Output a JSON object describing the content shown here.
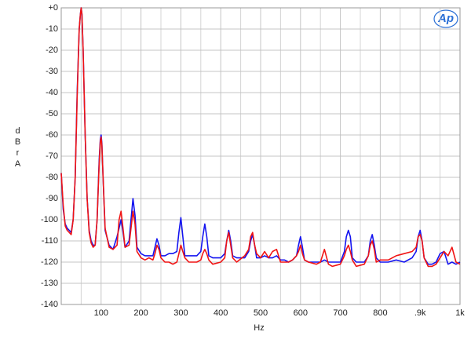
{
  "chart_data": {
    "type": "line",
    "logo": "Ap",
    "xlabel": "Hz",
    "ylabel": "dBr A",
    "x": [
      0,
      5,
      10,
      15,
      20,
      25,
      30,
      35,
      40,
      45,
      48,
      50,
      52,
      55,
      60,
      65,
      70,
      75,
      80,
      85,
      90,
      95,
      98,
      100,
      102,
      105,
      110,
      120,
      130,
      140,
      145,
      150,
      155,
      160,
      170,
      175,
      180,
      185,
      190,
      200,
      210,
      220,
      230,
      235,
      240,
      245,
      250,
      260,
      270,
      280,
      290,
      295,
      300,
      305,
      310,
      320,
      330,
      340,
      350,
      355,
      360,
      365,
      370,
      380,
      400,
      410,
      415,
      420,
      425,
      430,
      440,
      460,
      470,
      475,
      480,
      485,
      490,
      500,
      510,
      520,
      530,
      540,
      550,
      560,
      570,
      580,
      590,
      595,
      600,
      605,
      610,
      620,
      640,
      650,
      660,
      670,
      680,
      700,
      710,
      715,
      720,
      725,
      730,
      740,
      760,
      770,
      775,
      780,
      785,
      790,
      800,
      820,
      840,
      860,
      880,
      890,
      895,
      900,
      905,
      910,
      920,
      930,
      940,
      950,
      960,
      970,
      980,
      990,
      1000
    ],
    "series": [
      {
        "color": "#1414f0",
        "values": [
          -78,
          -95,
          -102,
          -104,
          -105,
          -106,
          -100,
          -80,
          -40,
          -10,
          -3,
          0,
          -3,
          -20,
          -60,
          -90,
          -105,
          -110,
          -112,
          -112,
          -100,
          -72,
          -62,
          -60,
          -64,
          -80,
          -105,
          -112,
          -114,
          -108,
          -104,
          -100,
          -106,
          -113,
          -110,
          -100,
          -90,
          -98,
          -113,
          -116,
          -117,
          -117,
          -117,
          -113,
          -109,
          -112,
          -117,
          -117,
          -116,
          -116,
          -115,
          -106,
          -99,
          -108,
          -117,
          -117,
          -117,
          -117,
          -115,
          -108,
          -102,
          -108,
          -117,
          -118,
          -118,
          -116,
          -110,
          -105,
          -110,
          -117,
          -118,
          -118,
          -115,
          -110,
          -107,
          -112,
          -118,
          -118,
          -117,
          -118,
          -118,
          -117,
          -119,
          -119,
          -120,
          -119,
          -117,
          -112,
          -108,
          -113,
          -119,
          -120,
          -120,
          -120,
          -119,
          -120,
          -120,
          -120,
          -115,
          -108,
          -105,
          -108,
          -118,
          -120,
          -120,
          -117,
          -110,
          -107,
          -112,
          -118,
          -120,
          -120,
          -119,
          -120,
          -118,
          -115,
          -108,
          -105,
          -110,
          -118,
          -121,
          -121,
          -120,
          -116,
          -115,
          -121,
          -120,
          -121,
          -120
        ]
      },
      {
        "color": "#f01414",
        "values": [
          -78,
          -93,
          -103,
          -105,
          -106,
          -107,
          -100,
          -80,
          -42,
          -10,
          -3,
          0,
          -3,
          -20,
          -60,
          -90,
          -106,
          -111,
          -113,
          -112,
          -100,
          -74,
          -63,
          -61,
          -65,
          -80,
          -104,
          -113,
          -114,
          -112,
          -100,
          -96,
          -104,
          -113,
          -112,
          -104,
          -96,
          -102,
          -115,
          -118,
          -119,
          -118,
          -119,
          -116,
          -112,
          -114,
          -118,
          -120,
          -120,
          -121,
          -120,
          -116,
          -112,
          -115,
          -118,
          -120,
          -120,
          -120,
          -119,
          -116,
          -114,
          -116,
          -119,
          -121,
          -120,
          -118,
          -110,
          -106,
          -112,
          -118,
          -120,
          -117,
          -114,
          -108,
          -106,
          -112,
          -116,
          -118,
          -115,
          -118,
          -115,
          -114,
          -120,
          -120,
          -120,
          -119,
          -117,
          -115,
          -112,
          -116,
          -119,
          -120,
          -121,
          -120,
          -114,
          -121,
          -122,
          -121,
          -117,
          -114,
          -112,
          -115,
          -119,
          -122,
          -121,
          -117,
          -112,
          -110,
          -114,
          -120,
          -119,
          -119,
          -117,
          -116,
          -115,
          -113,
          -108,
          -107,
          -110,
          -118,
          -122,
          -122,
          -121,
          -118,
          -115,
          -117,
          -113,
          -120,
          -121
        ]
      }
    ],
    "xlim": [
      0,
      1000
    ],
    "xticks": [
      100,
      200,
      300,
      400,
      500,
      600,
      700,
      800,
      {
        "value": 900,
        "label": ".9k"
      },
      {
        "value": 1000,
        "label": "1k"
      }
    ],
    "x_minor_grid": [
      50,
      150,
      250,
      350,
      450,
      550,
      650,
      750,
      850,
      950
    ],
    "ylim": [
      -140,
      0
    ],
    "yticks": [
      {
        "value": 0,
        "label": "+0"
      },
      -10,
      -20,
      -30,
      -40,
      -50,
      -60,
      -70,
      -80,
      -90,
      -100,
      -110,
      -120,
      -130,
      -140
    ],
    "grid": true
  }
}
